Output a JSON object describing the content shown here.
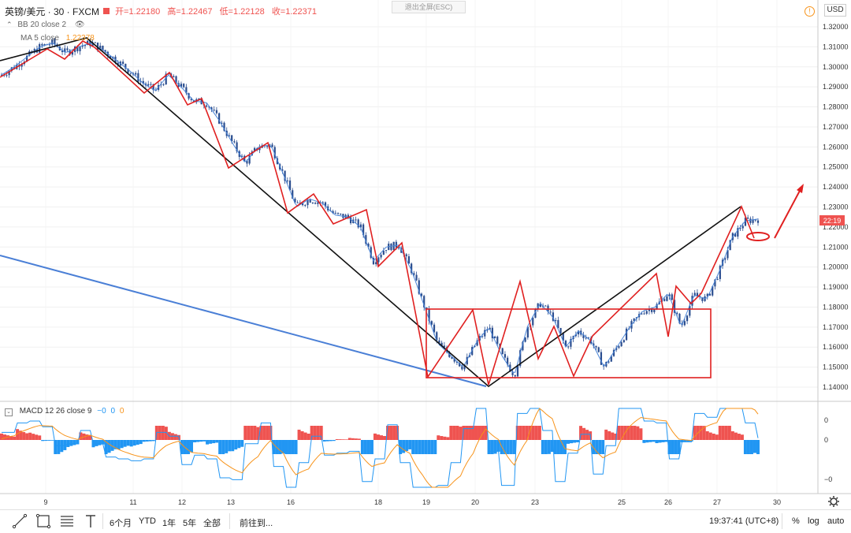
{
  "header": {
    "symbol": "英镑/美元 · 30 · FXCM",
    "open_label": "开=1.22180",
    "high_label": "高=1.22467",
    "low_label": "低=1.22128",
    "close_label": "收=1.22371"
  },
  "indicators": {
    "bb_label": "BB 20 close 2",
    "ma_label": "MA 5 close",
    "ma_value": "1.22378",
    "macd_label": "MACD 12 26 close 9",
    "macd_v1": "−0",
    "macd_v2": "0",
    "macd_v3": "0"
  },
  "exit_fullscreen": "退出全屏(ESC)",
  "currency_button": "USD",
  "countdown": "22:19",
  "footer": {
    "ranges": [
      "6个月",
      "YTD",
      "1年",
      "5年",
      "全部"
    ],
    "goto": "前往到...",
    "time": "19:37:41 (UTC+8)",
    "percent": "%",
    "log": "log",
    "auto": "auto"
  },
  "colors": {
    "up_candle": "#2a4d8f",
    "zigzag": "#e02020",
    "trendline": "#111111",
    "blue_line": "#4a7fd6",
    "macd_positive": "#ef5350",
    "macd_negative": "#2196f3",
    "price_tag": "#ef5350"
  },
  "chart_data": {
    "type": "line",
    "title": "英镑/美元 · 30 · FXCM",
    "price_axis": {
      "ticks": [
        "1.32000",
        "1.31000",
        "1.30000",
        "1.29000",
        "1.28000",
        "1.27000",
        "1.26000",
        "1.25000",
        "1.24000",
        "1.23000",
        "1.22000",
        "1.21000",
        "1.20000",
        "1.19000",
        "1.18000",
        "1.17000",
        "1.16000",
        "1.15000",
        "1.14000"
      ],
      "ylim": [
        1.135,
        1.325
      ]
    },
    "macd_axis": {
      "ticks": [
        "0",
        "0",
        "−0"
      ]
    },
    "x_axis": {
      "labels": [
        "9",
        "11",
        "12",
        "13",
        "16",
        "18",
        "19",
        "20",
        "23",
        "25",
        "26",
        "27",
        "30"
      ]
    },
    "series": [
      {
        "x": [
          0,
          1,
          2,
          3,
          4,
          5,
          6,
          7,
          8,
          9,
          10,
          11,
          12,
          13,
          14,
          15,
          16,
          17,
          18,
          19,
          20,
          21,
          22,
          23,
          24,
          25,
          26,
          27,
          28,
          29,
          30,
          31,
          32,
          33,
          34,
          35,
          36,
          37,
          38,
          39,
          40,
          41,
          42,
          43,
          44,
          45,
          46,
          47,
          48,
          49,
          50,
          51,
          52,
          53,
          54,
          55,
          56,
          57,
          58,
          59
        ],
        "values": [
          1.296,
          1.3,
          1.305,
          1.31,
          1.312,
          1.307,
          1.31,
          1.312,
          1.308,
          1.303,
          1.298,
          1.292,
          1.288,
          1.296,
          1.29,
          1.283,
          1.282,
          1.273,
          1.262,
          1.252,
          1.26,
          1.261,
          1.246,
          1.23,
          1.234,
          1.232,
          1.226,
          1.225,
          1.22,
          1.203,
          1.21,
          1.211,
          1.198,
          1.18,
          1.162,
          1.156,
          1.15,
          1.162,
          1.17,
          1.156,
          1.146,
          1.17,
          1.182,
          1.175,
          1.16,
          1.168,
          1.163,
          1.15,
          1.16,
          1.17,
          1.178,
          1.18,
          1.187,
          1.17,
          1.186,
          1.184,
          1.198,
          1.215,
          1.223,
          1.224
        ]
      }
    ],
    "annotations": [
      "rectangle consolidation zone 1.145–1.179",
      "target arrow up",
      "circle at current price"
    ]
  }
}
